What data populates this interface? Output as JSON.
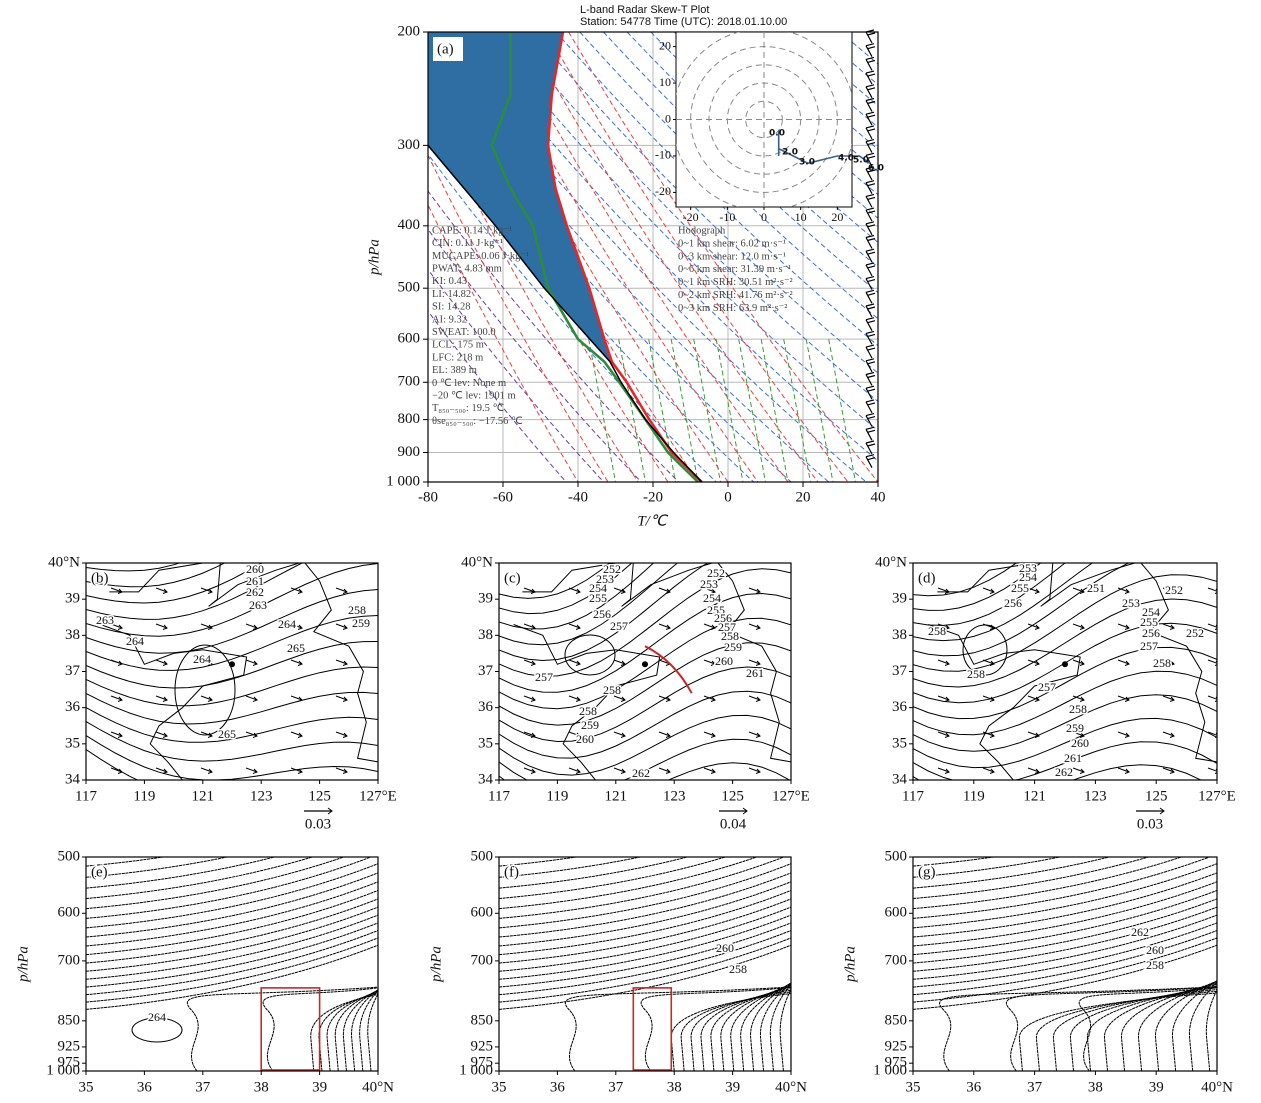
{
  "chart_data": [
    {
      "type": "skew-t",
      "title": [
        "L-band Radar Skew-T Plot",
        "Station: 54778 Time (UTC): 2018.01.10.00"
      ],
      "panel_label": "(a)",
      "xlabel": "T/℃",
      "ylabel": "p/hPa",
      "xlim": [
        -80,
        40
      ],
      "ylim": [
        1000,
        200
      ],
      "log_y": true,
      "grid": true,
      "xticks": [
        -80,
        -60,
        -40,
        -20,
        0,
        20,
        40
      ],
      "yticks": [
        200,
        300,
        400,
        500,
        600,
        700,
        800,
        900,
        {
          "value": 1000,
          "label": "1 000"
        }
      ],
      "series": [
        {
          "color": "#e8252b",
          "x": [
            -7,
            -15,
            -21,
            -27,
            -31,
            -33,
            -37,
            -43,
            -46,
            -48,
            -47,
            -44
          ],
          "y": [
            1000,
            900,
            800,
            700,
            650,
            600,
            500,
            400,
            350,
            300,
            250,
            200
          ]
        },
        {
          "color": "#2e8b3c",
          "x": [
            -8,
            -16,
            -22,
            -29,
            -33,
            -40,
            -48,
            -52,
            -58,
            -63,
            -58,
            -58
          ],
          "y": [
            1000,
            900,
            800,
            700,
            650,
            600,
            500,
            400,
            350,
            300,
            250,
            200
          ]
        },
        {
          "color": "#000000",
          "x": [
            -7,
            -14.5,
            -22,
            -28.5,
            -31.5,
            -49,
            -62,
            -80
          ],
          "y": [
            1000,
            900,
            800,
            700,
            650,
            500,
            400,
            300
          ]
        }
      ],
      "fill_color": "#2f6ea3",
      "indices": [
        "CAPE: 0.14 J·kg⁻¹",
        "CIN: 0.11 J·kg⁻¹",
        "MUCAPE: 0.06 J·kg⁻¹",
        "PWAT: 4.83 mm",
        "KI: 0.43",
        "LI: 14.82",
        "SI: 14.28",
        "AI: 9.32",
        "SWEAT: 100.0",
        "LCL: 175 m",
        "LFC: 218 m",
        "EL: 389 m",
        "0 ℃ lev: None m",
        "−20 ℃ lev: 1901 m",
        "T₈₅₀₋₅₀₀: 19.5 ℃",
        "θse₈₅₀₋₅₀₀: −17.56 ℃"
      ],
      "hodograph": {
        "title": "Hodograph",
        "xlim": [
          -24,
          24
        ],
        "ylim": [
          -24,
          24
        ],
        "xticks": [
          -20,
          -10,
          0,
          10,
          20
        ],
        "yticks": [
          -20,
          -10,
          0,
          10,
          20
        ],
        "color": "#3a5f8a",
        "u": [
          4,
          4,
          4,
          6,
          8,
          12,
          16,
          20,
          23,
          26,
          29
        ],
        "v": [
          -3,
          -10,
          -8,
          -9,
          -10,
          -12,
          -11,
          -10,
          -10,
          -10,
          -12
        ],
        "height_labels": [
          "0.0",
          "2.0",
          "3.0",
          "4.0",
          "5.0",
          "6.0"
        ],
        "stats": [
          "0~1 km shear: 6.02 m·s⁻¹",
          "0~3 km shear: 12.0 m·s⁻¹",
          "0~6 km shear: 31.39 m·s⁻¹",
          "0~1 km SRH: 30.51 m²·s⁻²",
          "0~2 km SRH: 41.76 m²·s⁻²",
          "0~3 km SRH: 63.9 m²·s⁻²"
        ]
      }
    },
    {
      "type": "contour-map",
      "panel_label": "(b)",
      "xlim": [
        117,
        127
      ],
      "ylim": [
        34,
        40
      ],
      "xticks": [
        117,
        119,
        121,
        123,
        125,
        {
          "value": 127,
          "label": "127°E"
        }
      ],
      "yticks": [
        34,
        35,
        36,
        37,
        38,
        39,
        {
          "value": 40,
          "label": "40°N"
        }
      ],
      "contour_labels": [
        260,
        261,
        262,
        263,
        263,
        264,
        264,
        264,
        265,
        265,
        258,
        259
      ],
      "vector_scale": 0.03
    },
    {
      "type": "contour-map",
      "panel_label": "(c)",
      "xlim": [
        117,
        127
      ],
      "ylim": [
        34,
        40
      ],
      "xticks": [
        117,
        119,
        121,
        123,
        125,
        {
          "value": 127,
          "label": "127°E"
        }
      ],
      "yticks": [
        34,
        35,
        36,
        37,
        38,
        39,
        {
          "value": 40,
          "label": "40°N"
        }
      ],
      "contour_labels": [
        252,
        253,
        254,
        255,
        256,
        257,
        252,
        253,
        254,
        255,
        256,
        257,
        258,
        259,
        260,
        261,
        257,
        258,
        258,
        259,
        260,
        262
      ],
      "vector_scale": 0.04
    },
    {
      "type": "contour-map",
      "panel_label": "(d)",
      "xlim": [
        117,
        127
      ],
      "ylim": [
        34,
        40
      ],
      "xticks": [
        117,
        119,
        121,
        123,
        125,
        {
          "value": 127,
          "label": "127°E"
        }
      ],
      "yticks": [
        34,
        35,
        36,
        37,
        38,
        39,
        {
          "value": 40,
          "label": "40°N"
        }
      ],
      "contour_labels": [
        253,
        254,
        255,
        256,
        251,
        252,
        253,
        254,
        255,
        256,
        257,
        252,
        258,
        258,
        257,
        258,
        258,
        259,
        260,
        261,
        262
      ],
      "vector_scale": 0.03
    },
    {
      "type": "contour-section",
      "panel_label": "(e)",
      "ylabel": "p/hPa",
      "xlim": [
        35,
        40
      ],
      "ylim": [
        1000,
        500
      ],
      "log_y": true,
      "xticks": [
        35,
        36,
        37,
        38,
        39,
        {
          "value": 40,
          "label": "40°N"
        }
      ],
      "yticks": [
        500,
        600,
        700,
        850,
        925,
        975,
        {
          "value": 1000,
          "label": "1 000"
        }
      ],
      "contour_labels": [
        264
      ]
    },
    {
      "type": "contour-section",
      "panel_label": "(f)",
      "ylabel": "p/hPa",
      "xlim": [
        35,
        40
      ],
      "ylim": [
        1000,
        500
      ],
      "log_y": true,
      "xticks": [
        35,
        36,
        37,
        38,
        39,
        {
          "value": 40,
          "label": "40°N"
        }
      ],
      "yticks": [
        500,
        600,
        700,
        850,
        925,
        975,
        {
          "value": 1000,
          "label": "1 000"
        }
      ],
      "contour_labels": [
        260,
        258
      ]
    },
    {
      "type": "contour-section",
      "panel_label": "(g)",
      "ylabel": "p/hPa",
      "xlim": [
        35,
        40
      ],
      "ylim": [
        1000,
        500
      ],
      "log_y": true,
      "xticks": [
        35,
        36,
        37,
        38,
        39,
        {
          "value": 40,
          "label": "40°N"
        }
      ],
      "yticks": [
        500,
        600,
        700,
        850,
        925,
        975,
        {
          "value": 1000,
          "label": "1 000"
        }
      ],
      "contour_labels": [
        262,
        260,
        258
      ]
    }
  ]
}
